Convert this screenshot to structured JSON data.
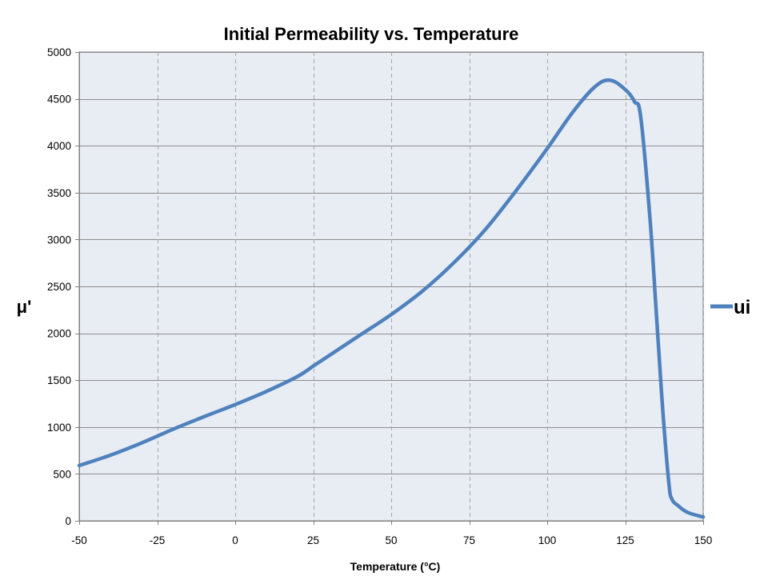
{
  "chart_data": {
    "type": "line",
    "title": "Initial Permeability vs. Temperature",
    "xlabel": "Temperature  (°C)",
    "ylabel": "μ'",
    "xlim": [
      -50,
      150
    ],
    "ylim": [
      0,
      5000
    ],
    "x_ticks": [
      -50,
      -25,
      0,
      25,
      50,
      75,
      100,
      125,
      150
    ],
    "y_ticks": [
      0,
      500,
      1000,
      1500,
      2000,
      2500,
      3000,
      3500,
      4000,
      4500,
      5000
    ],
    "x_tick_labels": [
      "-50",
      "-25",
      "0",
      "25",
      "50",
      "75",
      "100",
      "125",
      "150"
    ],
    "y_tick_labels": [
      "0",
      "500",
      "1000",
      "1500",
      "2000",
      "2500",
      "3000",
      "3500",
      "4000",
      "4500",
      "5000"
    ],
    "grid": true,
    "legend_position": "right",
    "background_color": "#e8edf4",
    "series": [
      {
        "name": "ui",
        "color": "#4f81bd",
        "x": [
          -50,
          -40,
          -30,
          -20,
          -10,
          0,
          10,
          20,
          25,
          30,
          40,
          50,
          60,
          70,
          80,
          90,
          100,
          108,
          115,
          120,
          125,
          128,
          130,
          133,
          135,
          137,
          139,
          140,
          142,
          145,
          150
        ],
        "y": [
          590,
          700,
          830,
          975,
          1110,
          1240,
          1380,
          1540,
          1650,
          1760,
          1980,
          2200,
          2450,
          2750,
          3100,
          3520,
          3970,
          4350,
          4620,
          4700,
          4600,
          4470,
          4300,
          3200,
          2200,
          1200,
          400,
          230,
          160,
          90,
          40
        ]
      }
    ]
  }
}
